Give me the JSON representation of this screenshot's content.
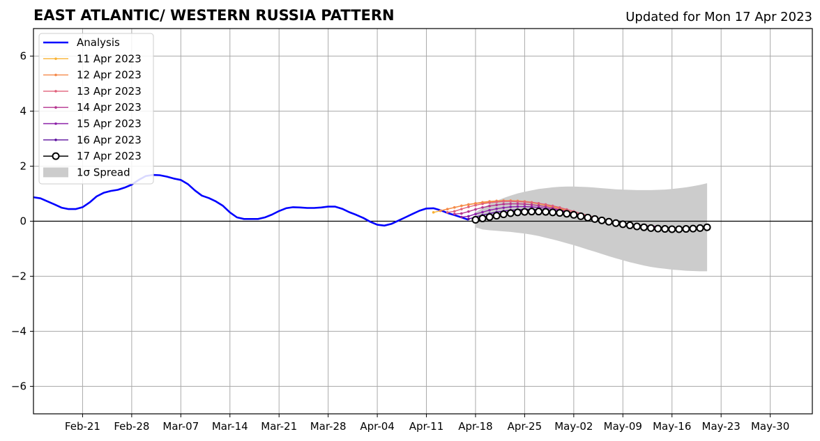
{
  "chart_data": {
    "type": "line",
    "title": "EAST ATLANTIC/ WESTERN RUSSIA PATTERN",
    "subtitle": "Updated for Mon 17 Apr 2023",
    "xlabel": "",
    "ylabel": "",
    "xlim": [
      "2023-02-14",
      "2023-06-05"
    ],
    "ylim": [
      -7,
      7
    ],
    "xticks": [
      "Feb-21",
      "Feb-28",
      "Mar-07",
      "Mar-14",
      "Mar-21",
      "Mar-28",
      "Apr-04",
      "Apr-11",
      "Apr-18",
      "Apr-25",
      "May-02",
      "May-09",
      "May-16",
      "May-23",
      "May-30"
    ],
    "xtick_dates": [
      "2023-02-21",
      "2023-02-28",
      "2023-03-07",
      "2023-03-14",
      "2023-03-21",
      "2023-03-28",
      "2023-04-04",
      "2023-04-11",
      "2023-04-18",
      "2023-04-25",
      "2023-05-02",
      "2023-05-09",
      "2023-05-16",
      "2023-05-23",
      "2023-05-30"
    ],
    "yticks": [
      -6,
      -4,
      -2,
      0,
      2,
      4,
      6
    ],
    "ytick_labels": [
      "−6",
      "−4",
      "−2",
      "0",
      "2",
      "4",
      "6"
    ],
    "grid": true,
    "legend_position": "top-left",
    "analysis": {
      "name": "Analysis",
      "color": "#0000ff",
      "x": [
        "2023-02-14",
        "2023-02-15",
        "2023-02-16",
        "2023-02-17",
        "2023-02-18",
        "2023-02-19",
        "2023-02-20",
        "2023-02-21",
        "2023-02-22",
        "2023-02-23",
        "2023-02-24",
        "2023-02-25",
        "2023-02-26",
        "2023-02-27",
        "2023-02-28",
        "2023-03-01",
        "2023-03-02",
        "2023-03-03",
        "2023-03-04",
        "2023-03-05",
        "2023-03-06",
        "2023-03-07",
        "2023-03-08",
        "2023-03-09",
        "2023-03-10",
        "2023-03-11",
        "2023-03-12",
        "2023-03-13",
        "2023-03-14",
        "2023-03-15",
        "2023-03-16",
        "2023-03-17",
        "2023-03-18",
        "2023-03-19",
        "2023-03-20",
        "2023-03-21",
        "2023-03-22",
        "2023-03-23",
        "2023-03-24",
        "2023-03-25",
        "2023-03-26",
        "2023-03-27",
        "2023-03-28",
        "2023-03-29",
        "2023-03-30",
        "2023-03-31",
        "2023-04-01",
        "2023-04-02",
        "2023-04-03",
        "2023-04-04",
        "2023-04-05",
        "2023-04-06",
        "2023-04-07",
        "2023-04-08",
        "2023-04-09",
        "2023-04-10",
        "2023-04-11",
        "2023-04-12",
        "2023-04-13",
        "2023-04-14",
        "2023-04-15",
        "2023-04-16",
        "2023-04-17"
      ],
      "values": [
        0.87,
        0.83,
        0.72,
        0.61,
        0.49,
        0.44,
        0.44,
        0.51,
        0.68,
        0.9,
        1.03,
        1.1,
        1.14,
        1.22,
        1.33,
        1.5,
        1.64,
        1.68,
        1.67,
        1.62,
        1.55,
        1.5,
        1.35,
        1.12,
        0.93,
        0.84,
        0.72,
        0.56,
        0.32,
        0.14,
        0.08,
        0.08,
        0.08,
        0.14,
        0.24,
        0.37,
        0.47,
        0.51,
        0.5,
        0.48,
        0.48,
        0.5,
        0.53,
        0.53,
        0.45,
        0.33,
        0.23,
        0.12,
        -0.02,
        -0.13,
        -0.16,
        -0.1,
        0.02,
        0.14,
        0.26,
        0.38,
        0.46,
        0.47,
        0.4,
        0.3,
        0.22,
        0.14,
        0.05
      ]
    },
    "forecasts": [
      {
        "name": "11 Apr 2023",
        "color": "#f9b233",
        "start": "2023-04-12",
        "values": [
          0.32,
          0.38,
          0.44,
          0.5,
          0.56,
          0.6,
          0.64,
          0.67,
          0.7,
          0.72,
          0.73,
          0.73,
          0.72,
          0.7,
          0.67,
          0.63,
          0.58,
          0.52,
          0.46,
          0.38,
          0.3,
          0.22,
          0.14,
          0.06,
          -0.01,
          -0.06,
          -0.1,
          -0.13,
          -0.15,
          -0.17,
          -0.18,
          -0.19,
          -0.2
        ]
      },
      {
        "name": "12 Apr 2023",
        "color": "#f5894a",
        "start": "2023-04-13",
        "values": [
          0.38,
          0.44,
          0.5,
          0.56,
          0.61,
          0.65,
          0.69,
          0.72,
          0.74,
          0.75,
          0.75,
          0.74,
          0.72,
          0.69,
          0.65,
          0.6,
          0.54,
          0.47,
          0.39,
          0.31,
          0.23,
          0.15,
          0.08,
          0.01,
          -0.05,
          -0.09,
          -0.12,
          -0.15,
          -0.17,
          -0.18,
          -0.19,
          -0.2
        ]
      },
      {
        "name": "13 Apr 2023",
        "color": "#e0607a",
        "start": "2023-04-14",
        "values": [
          0.32,
          0.36,
          0.44,
          0.52,
          0.58,
          0.63,
          0.67,
          0.7,
          0.72,
          0.72,
          0.71,
          0.7,
          0.68,
          0.65,
          0.61,
          0.56,
          0.5,
          0.43,
          0.36,
          0.28,
          0.21,
          0.14,
          0.07,
          0.01,
          -0.05,
          -0.09,
          -0.12,
          -0.14,
          -0.16,
          -0.18,
          -0.19
        ]
      },
      {
        "name": "14 Apr 2023",
        "color": "#b5338f",
        "start": "2023-04-15",
        "values": [
          0.26,
          0.28,
          0.35,
          0.43,
          0.5,
          0.55,
          0.59,
          0.62,
          0.63,
          0.63,
          0.62,
          0.6,
          0.57,
          0.53,
          0.48,
          0.42,
          0.36,
          0.3,
          0.23,
          0.17,
          0.11,
          0.05,
          -0.01,
          -0.06,
          -0.1,
          -0.13,
          -0.15,
          -0.17,
          -0.18,
          -0.19
        ]
      },
      {
        "name": "15 Apr 2023",
        "color": "#8b1fa8",
        "start": "2023-04-16",
        "values": [
          0.15,
          0.18,
          0.26,
          0.33,
          0.4,
          0.45,
          0.49,
          0.52,
          0.53,
          0.53,
          0.52,
          0.5,
          0.47,
          0.43,
          0.39,
          0.34,
          0.28,
          0.22,
          0.16,
          0.1,
          0.05,
          0.0,
          -0.05,
          -0.09,
          -0.13,
          -0.16,
          -0.18,
          -0.19,
          -0.2
        ]
      },
      {
        "name": "16 Apr 2023",
        "color": "#5b0f9e",
        "start": "2023-04-17",
        "values": [
          0.08,
          0.15,
          0.22,
          0.28,
          0.33,
          0.37,
          0.4,
          0.42,
          0.43,
          0.43,
          0.42,
          0.4,
          0.37,
          0.33,
          0.28,
          0.23,
          0.18,
          0.13,
          0.08,
          0.03,
          -0.02,
          -0.07,
          -0.11,
          -0.15,
          -0.18,
          -0.2,
          -0.21,
          -0.22
        ]
      }
    ],
    "current": {
      "name": "17 Apr 2023",
      "color": "#000000",
      "start": "2023-04-18",
      "values": [
        0.05,
        0.1,
        0.15,
        0.2,
        0.25,
        0.29,
        0.32,
        0.34,
        0.35,
        0.35,
        0.34,
        0.32,
        0.3,
        0.27,
        0.23,
        0.18,
        0.13,
        0.08,
        0.03,
        -0.02,
        -0.07,
        -0.11,
        -0.15,
        -0.19,
        -0.22,
        -0.25,
        -0.27,
        -0.28,
        -0.29,
        -0.29,
        -0.28,
        -0.27,
        -0.25,
        -0.22
      ]
    },
    "spread": {
      "name": "1σ Spread",
      "color": "#cccccc",
      "start": "2023-04-18",
      "upper": [
        0.32,
        0.48,
        0.62,
        0.74,
        0.84,
        0.93,
        1.01,
        1.07,
        1.12,
        1.17,
        1.2,
        1.23,
        1.25,
        1.26,
        1.26,
        1.25,
        1.24,
        1.22,
        1.2,
        1.18,
        1.16,
        1.15,
        1.14,
        1.13,
        1.13,
        1.13,
        1.14,
        1.15,
        1.17,
        1.2,
        1.23,
        1.27,
        1.32,
        1.38
      ],
      "lower": [
        -0.22,
        -0.3,
        -0.33,
        -0.35,
        -0.37,
        -0.39,
        -0.42,
        -0.45,
        -0.49,
        -0.54,
        -0.6,
        -0.66,
        -0.73,
        -0.8,
        -0.87,
        -0.95,
        -1.03,
        -1.11,
        -1.19,
        -1.27,
        -1.35,
        -1.42,
        -1.49,
        -1.55,
        -1.61,
        -1.66,
        -1.7,
        -1.73,
        -1.76,
        -1.78,
        -1.8,
        -1.81,
        -1.82,
        -1.82
      ]
    }
  }
}
